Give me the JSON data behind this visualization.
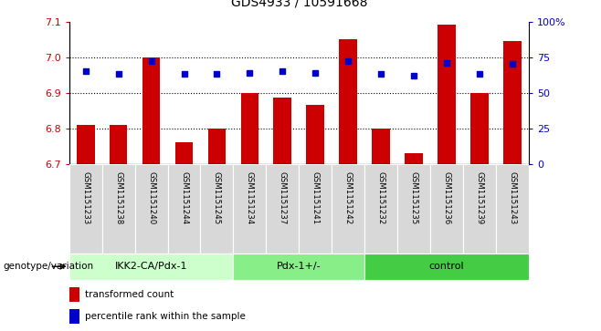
{
  "title": "GDS4933 / 10591668",
  "samples": [
    "GSM1151233",
    "GSM1151238",
    "GSM1151240",
    "GSM1151244",
    "GSM1151245",
    "GSM1151234",
    "GSM1151237",
    "GSM1151241",
    "GSM1151242",
    "GSM1151232",
    "GSM1151235",
    "GSM1151236",
    "GSM1151239",
    "GSM1151243"
  ],
  "red_values": [
    6.81,
    6.81,
    7.0,
    6.76,
    6.8,
    6.9,
    6.885,
    6.865,
    7.05,
    6.8,
    6.73,
    7.09,
    6.9,
    7.045
  ],
  "blue_values": [
    65,
    63,
    72,
    63,
    63,
    64,
    65,
    64,
    72,
    63,
    62,
    71,
    63,
    70
  ],
  "groups": [
    {
      "label": "IKK2-CA/Pdx-1",
      "start": 0,
      "end": 5
    },
    {
      "label": "Pdx-1+/-",
      "start": 5,
      "end": 9
    },
    {
      "label": "control",
      "start": 9,
      "end": 14
    }
  ],
  "group_colors": [
    "#ccffcc",
    "#88ee88",
    "#44cc44"
  ],
  "ylim_left": [
    6.7,
    7.1
  ],
  "ylim_right": [
    0,
    100
  ],
  "yticks_left": [
    6.7,
    6.8,
    6.9,
    7.0,
    7.1
  ],
  "yticks_right": [
    0,
    25,
    50,
    75,
    100
  ],
  "bar_color": "#cc0000",
  "dot_color": "#0000cc",
  "genotype_label": "genotype/variation",
  "legend_items": [
    {
      "color": "#cc0000",
      "label": "transformed count"
    },
    {
      "color": "#0000cc",
      "label": "percentile rank within the sample"
    }
  ]
}
